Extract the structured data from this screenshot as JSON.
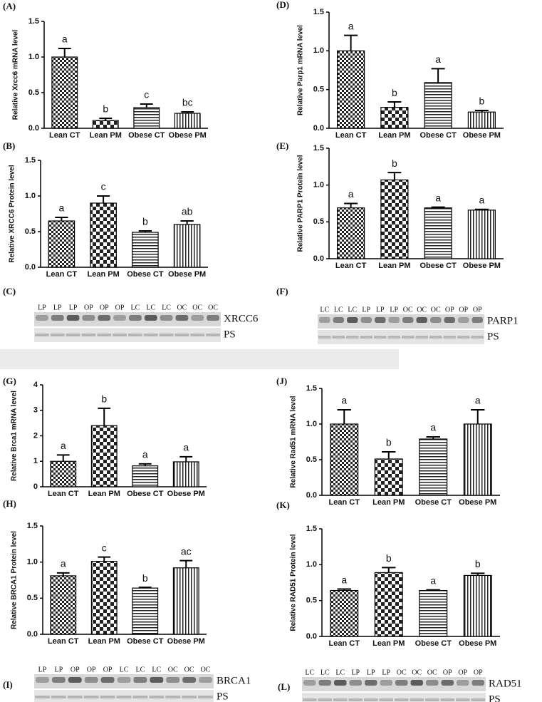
{
  "chart_data": [
    {
      "type": "bar",
      "panel": "(A)",
      "ylabel": "Relative Xrcc6 mRNA level",
      "categories": [
        "Lean CT",
        "Lean PM",
        "Obese CT",
        "Obese PM"
      ],
      "values": [
        1.0,
        0.11,
        0.29,
        0.21
      ],
      "errors": [
        0.12,
        0.03,
        0.05,
        0.02
      ],
      "annotations": [
        "a",
        "b",
        "c",
        "bc"
      ],
      "ylim": [
        0,
        1.5
      ],
      "yticks": [
        {
          "value": 0,
          "label": "0.0"
        },
        0.5,
        {
          "value": 1,
          "label": "1.0"
        },
        1.5
      ]
    },
    {
      "type": "bar",
      "panel": "(D)",
      "ylabel": "Relative Parp1 mRNA level",
      "categories": [
        "Lean CT",
        "Lean PM",
        "Obese CT",
        "Obese PM"
      ],
      "values": [
        1.0,
        0.27,
        0.59,
        0.21
      ],
      "errors": [
        0.2,
        0.07,
        0.18,
        0.02
      ],
      "annotations": [
        "a",
        "b",
        "a",
        "b"
      ],
      "ylim": [
        0,
        1.5
      ],
      "yticks": [
        {
          "value": 0,
          "label": "0.0"
        },
        0.5,
        {
          "value": 1,
          "label": "1.0"
        },
        1.5
      ]
    },
    {
      "type": "bar",
      "panel": "(B)",
      "ylabel": "Relative XRCC6 Protein level",
      "categories": [
        "Lean CT",
        "Lean PM",
        "Obese CT",
        "Obese PM"
      ],
      "values": [
        0.65,
        0.9,
        0.49,
        0.6
      ],
      "errors": [
        0.05,
        0.1,
        0.02,
        0.05
      ],
      "annotations": [
        "a",
        "c",
        "b",
        "ab"
      ],
      "ylim": [
        0,
        1.5
      ],
      "yticks": [
        {
          "value": 0,
          "label": "0.0"
        },
        0.5,
        {
          "value": 1,
          "label": "1.0"
        },
        1.5
      ]
    },
    {
      "type": "bar",
      "panel": "(E)",
      "ylabel": "Relative PARP1 Protein level",
      "categories": [
        "Lean CT",
        "Lean PM",
        "Obese CT",
        "Obese PM"
      ],
      "values": [
        0.69,
        1.07,
        0.69,
        0.66
      ],
      "errors": [
        0.06,
        0.1,
        0.01,
        0.01
      ],
      "annotations": [
        "a",
        "b",
        "a",
        "a"
      ],
      "ylim": [
        0,
        1.5
      ],
      "yticks": [
        {
          "value": 0,
          "label": "0.0"
        },
        0.5,
        {
          "value": 1,
          "label": "1.0"
        },
        1.5
      ]
    },
    {
      "type": "bar",
      "panel": "(G)",
      "ylabel": "Relative Brca1 mRNA level",
      "categories": [
        "Lean CT",
        "Lean PM",
        "Obese CT",
        "Obese PM"
      ],
      "values": [
        1.0,
        2.4,
        0.82,
        0.98
      ],
      "errors": [
        0.25,
        0.68,
        0.08,
        0.2
      ],
      "annotations": [
        "a",
        "b",
        "a",
        "a"
      ],
      "ylim": [
        0,
        4
      ],
      "yticks": [
        0,
        1,
        2,
        3,
        4
      ]
    },
    {
      "type": "bar",
      "panel": "(J)",
      "ylabel": "Relative Rad51 mRNA level",
      "categories": [
        "Lean CT",
        "Lean PM",
        "Obese CT",
        "Obese PM"
      ],
      "values": [
        1.0,
        0.51,
        0.79,
        1.0
      ],
      "errors": [
        0.2,
        0.1,
        0.03,
        0.2
      ],
      "annotations": [
        "a",
        "b",
        "a",
        "a"
      ],
      "ylim": [
        0,
        1.5
      ],
      "yticks": [
        {
          "value": 0,
          "label": "0.0"
        },
        0.5,
        {
          "value": 1,
          "label": "1.0"
        },
        1.5
      ]
    },
    {
      "type": "bar",
      "panel": "(H)",
      "ylabel": "Relative BRCA1 Protein level",
      "categories": [
        "Lean CT",
        "Lean PM",
        "Obese CT",
        "Obese PM"
      ],
      "values": [
        0.81,
        1.01,
        0.64,
        0.92
      ],
      "errors": [
        0.04,
        0.06,
        0.01,
        0.1
      ],
      "annotations": [
        "a",
        "c",
        "b",
        "ac"
      ],
      "ylim": [
        0,
        1.5
      ],
      "yticks": [
        {
          "value": 0,
          "label": "0.0"
        },
        0.5,
        {
          "value": 1,
          "label": "1.0"
        },
        1.5
      ]
    },
    {
      "type": "bar",
      "panel": "(K)",
      "ylabel": "Relative RAD51 Protein level",
      "categories": [
        "Lean CT",
        "Lean PM",
        "Obese CT",
        "Obese PM"
      ],
      "values": [
        0.64,
        0.89,
        0.64,
        0.85
      ],
      "errors": [
        0.02,
        0.07,
        0.01,
        0.03
      ],
      "annotations": [
        "a",
        "b",
        "a",
        "b"
      ],
      "ylim": [
        0,
        1.5
      ],
      "yticks": [
        {
          "value": 0,
          "label": "0.0"
        },
        0.5,
        {
          "value": 1,
          "label": "1.0"
        },
        1.5
      ]
    }
  ],
  "blots": [
    {
      "panel": "(C)",
      "lanes": [
        "LP",
        "LP",
        "LP",
        "OP",
        "OP",
        "OP",
        "LC",
        "LC",
        "LC",
        "OC",
        "OC",
        "OC"
      ],
      "labels": [
        "XRCC6",
        "PS"
      ]
    },
    {
      "panel": "(F)",
      "lanes": [
        "LC",
        "LC",
        "LC",
        "LP",
        "LP",
        "LP",
        "OC",
        "OC",
        "OC",
        "OP",
        "OP",
        "OP"
      ],
      "labels": [
        "PARP1",
        "PS"
      ]
    },
    {
      "panel": "(I)",
      "lanes": [
        "LP",
        "LP",
        "OP",
        "OP",
        "OP",
        "LC",
        "LC",
        "LC",
        "OC",
        "OC",
        "OC"
      ],
      "labels": [
        "BRCA1",
        "PS"
      ]
    },
    {
      "panel": "(L)",
      "lanes": [
        "LC",
        "LC",
        "LC",
        "LP",
        "LP",
        "LP",
        "OC",
        "OC",
        "OC",
        "OP",
        "OP",
        "OP"
      ],
      "labels": [
        "RAD51",
        "PS"
      ]
    }
  ]
}
